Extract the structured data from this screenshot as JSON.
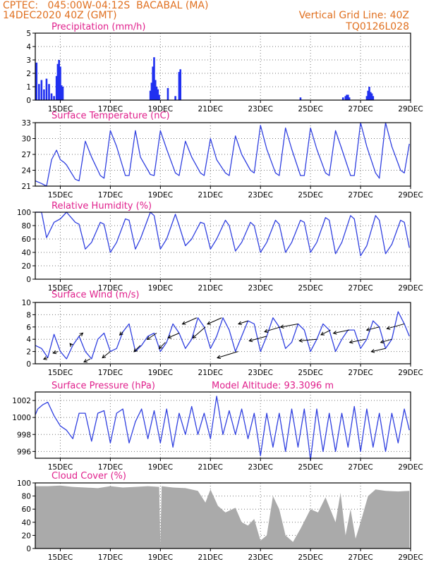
{
  "header": {
    "line1_left": "CPTEC:   045:00W-04:12S  BACABAL (MA)",
    "line2_left": "14DEC2020 40Z (GMT)",
    "line1_right": "Vertical Grid Line: 40Z",
    "line2_right": "TQ0126L028"
  },
  "x_axis": {
    "range": [
      14,
      29
    ],
    "ticks": [
      15,
      17,
      19,
      21,
      23,
      25,
      27,
      29
    ],
    "tick_labels": [
      "15DEC",
      "17DEC",
      "19DEC",
      "21DEC",
      "23DEC",
      "25DEC",
      "27DEC",
      "29DEC"
    ]
  },
  "colors": {
    "line": "#3040e0",
    "bars": "#2030f0",
    "cloud": "#aaaaaa",
    "title": "#e0208c",
    "header": "#e07020"
  },
  "chart_data": [
    {
      "type": "bar",
      "title": "Precipitation (mm/h)",
      "ylim": [
        0,
        5
      ],
      "yticks": [
        0,
        1,
        2,
        3,
        4,
        5
      ],
      "x": [
        14.05,
        14.15,
        14.25,
        14.35,
        14.45,
        14.55,
        14.65,
        14.75,
        14.85,
        14.9,
        14.95,
        15.0,
        15.05,
        15.1,
        18.6,
        18.65,
        18.7,
        18.75,
        18.8,
        18.85,
        18.9,
        18.95,
        19.3,
        19.6,
        19.75,
        19.8,
        24.6,
        26.3,
        26.4,
        26.45,
        26.5,
        26.55,
        27.25,
        27.3,
        27.35,
        27.4,
        27.45,
        27.5
      ],
      "values": [
        2.8,
        1.2,
        1.5,
        0.8,
        1.6,
        1.2,
        0.5,
        0.3,
        1.8,
        2.7,
        3.0,
        2.5,
        1.1,
        1.0,
        0.7,
        1.3,
        2.5,
        3.2,
        1.5,
        1.0,
        0.8,
        0.4,
        0.9,
        0.3,
        2.1,
        2.3,
        0.2,
        0.2,
        0.3,
        0.4,
        0.4,
        0.2,
        0.3,
        0.7,
        1.0,
        0.6,
        0.5,
        0.3
      ]
    },
    {
      "type": "line",
      "title": "Surface Temperature (nC)",
      "ylim": [
        21,
        33
      ],
      "yticks": [
        21,
        24,
        27,
        30,
        33
      ],
      "x": [
        14.0,
        14.25,
        14.45,
        14.65,
        14.85,
        15.0,
        15.15,
        15.25,
        15.6,
        15.75,
        16.0,
        16.25,
        16.6,
        16.75,
        17.0,
        17.25,
        17.6,
        17.75,
        18.0,
        18.2,
        18.6,
        18.75,
        19.0,
        19.25,
        19.6,
        19.75,
        20.0,
        20.25,
        20.6,
        20.75,
        21.0,
        21.25,
        21.6,
        21.75,
        22.0,
        22.25,
        22.6,
        22.75,
        23.0,
        23.25,
        23.6,
        23.75,
        24.0,
        24.25,
        24.6,
        24.75,
        25.0,
        25.25,
        25.6,
        25.75,
        26.0,
        26.25,
        26.6,
        26.75,
        27.0,
        27.25,
        27.6,
        27.75,
        28.0,
        28.25,
        28.6,
        28.75,
        28.95
      ],
      "values": [
        22.0,
        21.5,
        21.0,
        26.0,
        27.8,
        26.0,
        25.5,
        25.0,
        22.3,
        22.0,
        29.5,
        26.5,
        23.0,
        22.5,
        31.5,
        28.5,
        23.0,
        23.0,
        31.5,
        26.5,
        23.2,
        23.0,
        31.5,
        28.0,
        23.5,
        23.0,
        29.5,
        26.5,
        23.5,
        23.0,
        30.0,
        26.0,
        23.5,
        23.0,
        30.5,
        27.0,
        24.0,
        23.5,
        32.5,
        28.0,
        23.5,
        23.0,
        32.0,
        28.0,
        23.0,
        23.0,
        32.0,
        28.0,
        23.5,
        23.0,
        31.5,
        28.0,
        23.0,
        23.0,
        33.0,
        28.5,
        23.5,
        22.5,
        33.0,
        28.5,
        24.0,
        23.5,
        29.0
      ]
    },
    {
      "type": "line",
      "title": "Relative Humidity (%)",
      "ylim": [
        0,
        100
      ],
      "yticks": [
        0,
        20,
        40,
        60,
        80,
        100
      ],
      "x": [
        14.0,
        14.25,
        14.45,
        14.75,
        15.0,
        15.25,
        15.6,
        15.75,
        16.0,
        16.25,
        16.6,
        16.75,
        17.0,
        17.25,
        17.6,
        17.75,
        18.0,
        18.2,
        18.6,
        18.75,
        19.0,
        19.25,
        19.6,
        19.75,
        20.0,
        20.25,
        20.6,
        20.75,
        21.0,
        21.25,
        21.6,
        21.75,
        22.0,
        22.25,
        22.6,
        22.75,
        23.0,
        23.25,
        23.6,
        23.75,
        24.0,
        24.25,
        24.6,
        24.75,
        25.0,
        25.25,
        25.6,
        25.75,
        26.0,
        26.25,
        26.6,
        26.75,
        27.0,
        27.25,
        27.6,
        27.75,
        28.0,
        28.25,
        28.6,
        28.75,
        28.95
      ],
      "values": [
        100,
        100,
        62,
        85,
        90,
        100,
        85,
        82,
        45,
        55,
        85,
        82,
        40,
        55,
        90,
        88,
        45,
        60,
        100,
        95,
        45,
        60,
        97,
        80,
        50,
        60,
        85,
        83,
        45,
        60,
        88,
        80,
        42,
        55,
        85,
        80,
        40,
        55,
        88,
        82,
        40,
        55,
        88,
        85,
        40,
        55,
        92,
        88,
        38,
        55,
        95,
        90,
        35,
        50,
        95,
        88,
        38,
        52,
        88,
        85,
        47
      ]
    },
    {
      "type": "line",
      "title": "Surface Wind (m/s)",
      "ylim": [
        0,
        10
      ],
      "yticks": [
        0,
        2,
        4,
        6,
        8,
        10
      ],
      "x": [
        14.0,
        14.25,
        14.5,
        14.75,
        15.0,
        15.25,
        15.5,
        15.75,
        16.0,
        16.25,
        16.5,
        16.75,
        17.0,
        17.25,
        17.5,
        17.75,
        18.0,
        18.25,
        18.5,
        18.75,
        19.0,
        19.25,
        19.5,
        19.75,
        20.0,
        20.25,
        20.5,
        20.75,
        21.0,
        21.25,
        21.5,
        21.75,
        22.0,
        22.25,
        22.5,
        22.75,
        23.0,
        23.25,
        23.5,
        23.75,
        24.0,
        24.25,
        24.5,
        24.75,
        25.0,
        25.25,
        25.5,
        25.75,
        26.0,
        26.25,
        26.5,
        26.75,
        27.0,
        27.25,
        27.5,
        27.75,
        28.0,
        28.25,
        28.5,
        28.75,
        28.95
      ],
      "values": [
        3.0,
        2.5,
        1.0,
        4.8,
        2.0,
        0.8,
        3.0,
        4.5,
        2.0,
        0.8,
        4.0,
        5.0,
        2.0,
        2.5,
        5.2,
        6.5,
        2.0,
        3.0,
        4.5,
        5.0,
        2.0,
        3.5,
        6.5,
        5.0,
        2.5,
        4.0,
        7.5,
        6.0,
        2.5,
        4.5,
        7.5,
        5.5,
        2.0,
        4.5,
        7.0,
        6.5,
        2.0,
        4.5,
        7.5,
        6.0,
        2.5,
        3.5,
        6.5,
        5.5,
        2.0,
        4.0,
        6.5,
        5.5,
        2.0,
        4.0,
        5.5,
        5.5,
        2.5,
        4.0,
        7.0,
        6.0,
        2.5,
        4.0,
        8.5,
        6.5,
        4.5
      ],
      "arrows": {
        "x": [
          14.5,
          14.9,
          15.45,
          15.75,
          16.2,
          17.0,
          17.5,
          18.2,
          18.85,
          19.2,
          19.75,
          20.45,
          20.8,
          21.45,
          22.1,
          22.5,
          23.25,
          23.8,
          24.5,
          25.25,
          25.8,
          26.55,
          27.2,
          27.75,
          28.0,
          28.25,
          28.75
        ],
        "u": [
          -1.3,
          -1.5,
          -0.5,
          1.2,
          -2.0,
          -2.5,
          -1.0,
          -2.0,
          -3.0,
          -2.0,
          -3.5,
          -4.5,
          -4.0,
          -4.5,
          -6.5,
          -3.0,
          -5.5,
          -5.0,
          -5.5,
          -5.5,
          -3.0,
          -5.0,
          -5.0,
          -4.0,
          -4.5,
          -3.5,
          -5.5
        ],
        "v": [
          -0.5,
          -0.5,
          0.6,
          1.0,
          -1.0,
          -2.0,
          -1.0,
          -2.0,
          -2.0,
          -2.0,
          -1.5,
          -2.0,
          -3.5,
          -2.0,
          -2.0,
          -1.0,
          -1.5,
          -1.5,
          -1.0,
          -0.5,
          -1.5,
          -1.0,
          -1.0,
          -1.0,
          -1.0,
          -1.0,
          -1.5
        ]
      }
    },
    {
      "type": "line",
      "title": "Surface Pressure (hPa)",
      "annotation": "Model Altitude:  93.3096 m",
      "ylim": [
        995.2,
        1003
      ],
      "yticks": [
        996,
        998,
        1000,
        1002
      ],
      "x": [
        14.0,
        14.1,
        14.3,
        14.5,
        14.75,
        15.0,
        15.25,
        15.5,
        15.75,
        16.0,
        16.25,
        16.5,
        16.75,
        17.0,
        17.25,
        17.5,
        17.75,
        18.0,
        18.25,
        18.5,
        18.75,
        19.0,
        19.25,
        19.5,
        19.75,
        20.0,
        20.25,
        20.5,
        20.75,
        21.0,
        21.25,
        21.5,
        21.75,
        22.0,
        22.25,
        22.5,
        22.75,
        23.0,
        23.25,
        23.5,
        23.75,
        24.0,
        24.25,
        24.5,
        24.75,
        25.0,
        25.25,
        25.5,
        25.75,
        26.0,
        26.25,
        26.5,
        26.75,
        27.0,
        27.25,
        27.5,
        27.75,
        28.0,
        28.25,
        28.5,
        28.75,
        28.95
      ],
      "values": [
        1000.3,
        1001.0,
        1001.5,
        1001.8,
        1000.2,
        999.0,
        998.5,
        997.5,
        1000.5,
        1000.5,
        997.2,
        1000.5,
        1000.8,
        997.0,
        1000.5,
        1001.0,
        997.0,
        999.5,
        1001.0,
        997.5,
        1000.8,
        997.0,
        1001.0,
        996.5,
        1000.5,
        998.0,
        1001.3,
        998.0,
        1000.5,
        997.5,
        1002.5,
        998.0,
        1000.8,
        998.0,
        1001.0,
        997.5,
        1000.5,
        995.5,
        1000.5,
        996.5,
        1000.5,
        996.0,
        1001.0,
        996.5,
        1001.0,
        995.0,
        1001.0,
        996.0,
        1000.5,
        996.0,
        1000.5,
        996.5,
        1001.3,
        996.0,
        1001.0,
        996.5,
        1000.5,
        996.0,
        1000.5,
        997.0,
        1001.0,
        998.5
      ]
    },
    {
      "type": "area",
      "title": "Cloud Cover (%)",
      "ylim": [
        0,
        100
      ],
      "yticks": [
        0,
        20,
        40,
        60,
        80,
        100
      ],
      "x": [
        14.0,
        14.5,
        15.0,
        15.5,
        16.0,
        16.5,
        17.0,
        17.5,
        18.0,
        18.5,
        18.95,
        19.0,
        19.05,
        19.5,
        20.0,
        20.5,
        20.8,
        21.0,
        21.3,
        21.6,
        22.0,
        22.25,
        22.5,
        22.75,
        23.0,
        23.25,
        23.5,
        23.75,
        24.0,
        24.3,
        24.6,
        25.0,
        25.3,
        25.6,
        26.0,
        26.2,
        26.4,
        26.6,
        26.8,
        27.0,
        27.3,
        27.6,
        28.0,
        28.5,
        28.95
      ],
      "values": [
        95,
        95,
        96,
        94,
        93,
        92,
        95,
        93,
        94,
        95,
        94,
        5,
        95,
        93,
        92,
        88,
        70,
        90,
        65,
        55,
        62,
        40,
        35,
        45,
        12,
        20,
        80,
        60,
        20,
        10,
        30,
        60,
        55,
        78,
        40,
        85,
        20,
        60,
        15,
        40,
        80,
        90,
        88,
        87,
        88
      ]
    }
  ]
}
